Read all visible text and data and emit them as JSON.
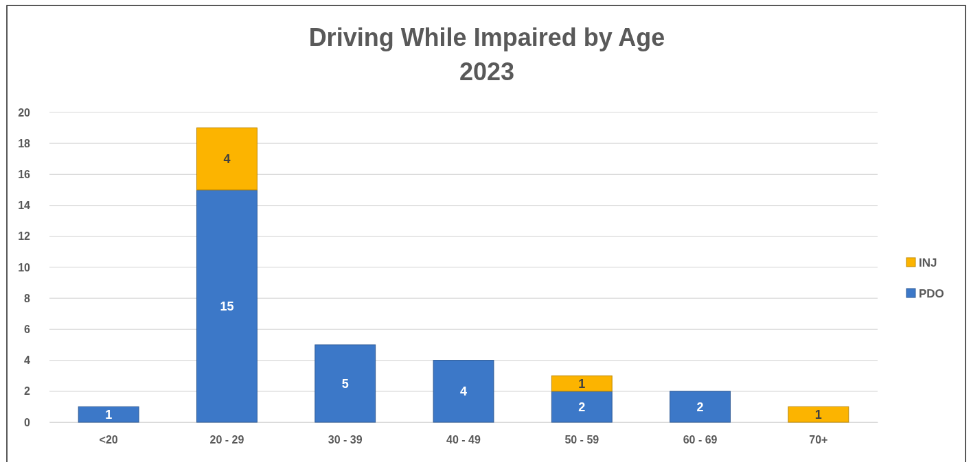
{
  "chart_data": {
    "type": "bar",
    "title": "Driving While Impaired by Age",
    "subtitle": "2023",
    "categories": [
      "<20",
      "20 - 29",
      "30 - 39",
      "40 - 49",
      "50 - 59",
      "60 - 69",
      "70+"
    ],
    "series": [
      {
        "name": "PDO",
        "color": "#3c78c8",
        "values": [
          1,
          15,
          5,
          4,
          2,
          2,
          null
        ]
      },
      {
        "name": "INJ",
        "color": "#fcb400",
        "values": [
          null,
          4,
          null,
          null,
          1,
          null,
          1
        ]
      }
    ],
    "stacked": true,
    "data_labels": true,
    "ylim": [
      0,
      20
    ],
    "yticks": [
      0,
      2,
      4,
      6,
      8,
      10,
      12,
      14,
      16,
      18,
      20
    ],
    "grid": "y",
    "legend": "right"
  }
}
